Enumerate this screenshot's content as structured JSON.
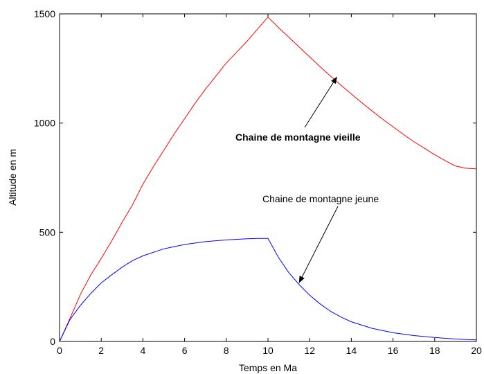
{
  "chart_data": {
    "type": "line",
    "xlabel": "Temps en Ma",
    "ylabel": "Altitude en m",
    "xlim": [
      0,
      20
    ],
    "ylim": [
      0,
      1500
    ],
    "x_ticks": [
      0,
      2,
      4,
      6,
      8,
      10,
      12,
      14,
      16,
      18,
      20
    ],
    "y_ticks": [
      0,
      500,
      1000,
      1500
    ],
    "grid": false,
    "series": [
      {
        "color": "#ff0000",
        "x": [
          0,
          0.5,
          1,
          1.5,
          2,
          2.5,
          3,
          3.5,
          4,
          4.5,
          5,
          5.5,
          6,
          6.5,
          7,
          7.5,
          8,
          8.5,
          9,
          9.5,
          10,
          10.5,
          11,
          11.5,
          12,
          12.5,
          13,
          13.5,
          14,
          14.5,
          15,
          15.5,
          16,
          16.5,
          17,
          17.5,
          18,
          18.5,
          19,
          19.5,
          20
        ],
        "values": [
          0,
          105,
          215,
          305,
          380,
          460,
          545,
          625,
          720,
          800,
          875,
          950,
          1020,
          1090,
          1155,
          1215,
          1275,
          1325,
          1375,
          1430,
          1485,
          1438,
          1393,
          1348,
          1303,
          1258,
          1215,
          1173,
          1133,
          1093,
          1055,
          1018,
          983,
          948,
          915,
          885,
          855,
          828,
          803,
          793,
          790
        ]
      },
      {
        "color": "#0000ff",
        "x": [
          0,
          0.5,
          1,
          1.5,
          2,
          2.5,
          3,
          3.5,
          4,
          5,
          6,
          7,
          8,
          9,
          9.5,
          10,
          10.5,
          11,
          11.5,
          12,
          12.5,
          13,
          13.5,
          14,
          15,
          16,
          17,
          18,
          19,
          20
        ],
        "values": [
          0,
          100,
          165,
          220,
          268,
          305,
          340,
          370,
          392,
          424,
          444,
          457,
          465,
          470,
          472,
          472,
          385,
          315,
          260,
          212,
          172,
          138,
          112,
          90,
          60,
          40,
          27,
          18,
          11,
          7
        ]
      }
    ],
    "annotations": [
      {
        "text": "Chaine de montagne vieille",
        "bold": true,
        "arrow_to": [
          13.3,
          1210
        ]
      },
      {
        "text": "Chaine de montagne jeune",
        "bold": false,
        "arrow_to": [
          11.5,
          270
        ]
      }
    ]
  }
}
